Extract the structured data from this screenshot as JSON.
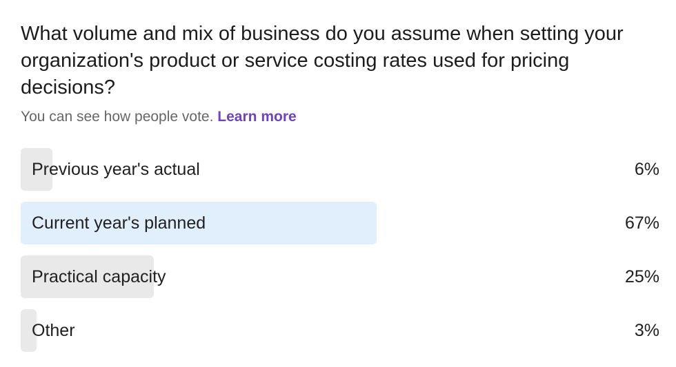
{
  "poll": {
    "question": "What volume and mix of business do you assume when setting your organization's product or service costing rates used for pricing decisions?",
    "note_text": "You can see how people vote.",
    "learn_more": "Learn more",
    "options": [
      {
        "label": "Previous year's actual",
        "percent_text": "6%",
        "percent": 6
      },
      {
        "label": "Current year's planned",
        "percent_text": "67%",
        "percent": 67
      },
      {
        "label": "Practical capacity",
        "percent_text": "25%",
        "percent": 25
      },
      {
        "label": "Other",
        "percent_text": "3%",
        "percent": 3
      }
    ]
  },
  "colors": {
    "leading_bar": "#e1effc",
    "bar": "#e9e9e9",
    "link": "#6f42c1",
    "note": "#666666"
  }
}
